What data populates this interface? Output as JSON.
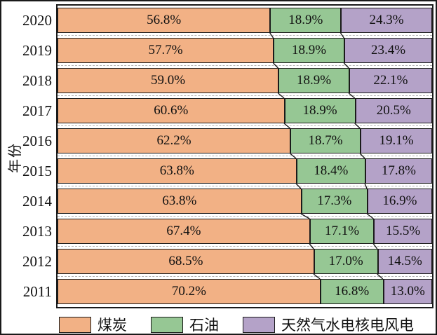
{
  "figure": {
    "background": "#ffffff",
    "frame_color": "#1a1a1a",
    "separator_style": "dashed",
    "separator_color": "#b3b3b3"
  },
  "chart_data": {
    "type": "bar",
    "orientation": "horizontal-stacked",
    "title": "",
    "ylabel": "年份",
    "xlabel": "",
    "xlim": [
      0,
      100
    ],
    "value_label_format": "0.0%",
    "legend_position": "bottom",
    "categories": [
      "2020",
      "2019",
      "2018",
      "2017",
      "2016",
      "2015",
      "2014",
      "2013",
      "2012",
      "2011"
    ],
    "series": [
      {
        "name": "煤炭",
        "key": "coal",
        "color": "#F2B185",
        "values": [
          56.8,
          57.7,
          59.0,
          60.6,
          62.2,
          63.8,
          63.8,
          67.4,
          68.5,
          70.2
        ]
      },
      {
        "name": "石油",
        "key": "oil",
        "color": "#96C794",
        "values": [
          18.9,
          18.9,
          18.9,
          18.9,
          18.7,
          18.4,
          17.3,
          17.1,
          17.0,
          16.8
        ]
      },
      {
        "name": "天然气水电核电风电",
        "key": "gas-hydro-nuclear-wind",
        "color": "#B4A2C8",
        "values": [
          24.3,
          23.4,
          22.1,
          20.5,
          19.1,
          17.8,
          16.9,
          15.5,
          14.5,
          13.0
        ]
      }
    ]
  }
}
